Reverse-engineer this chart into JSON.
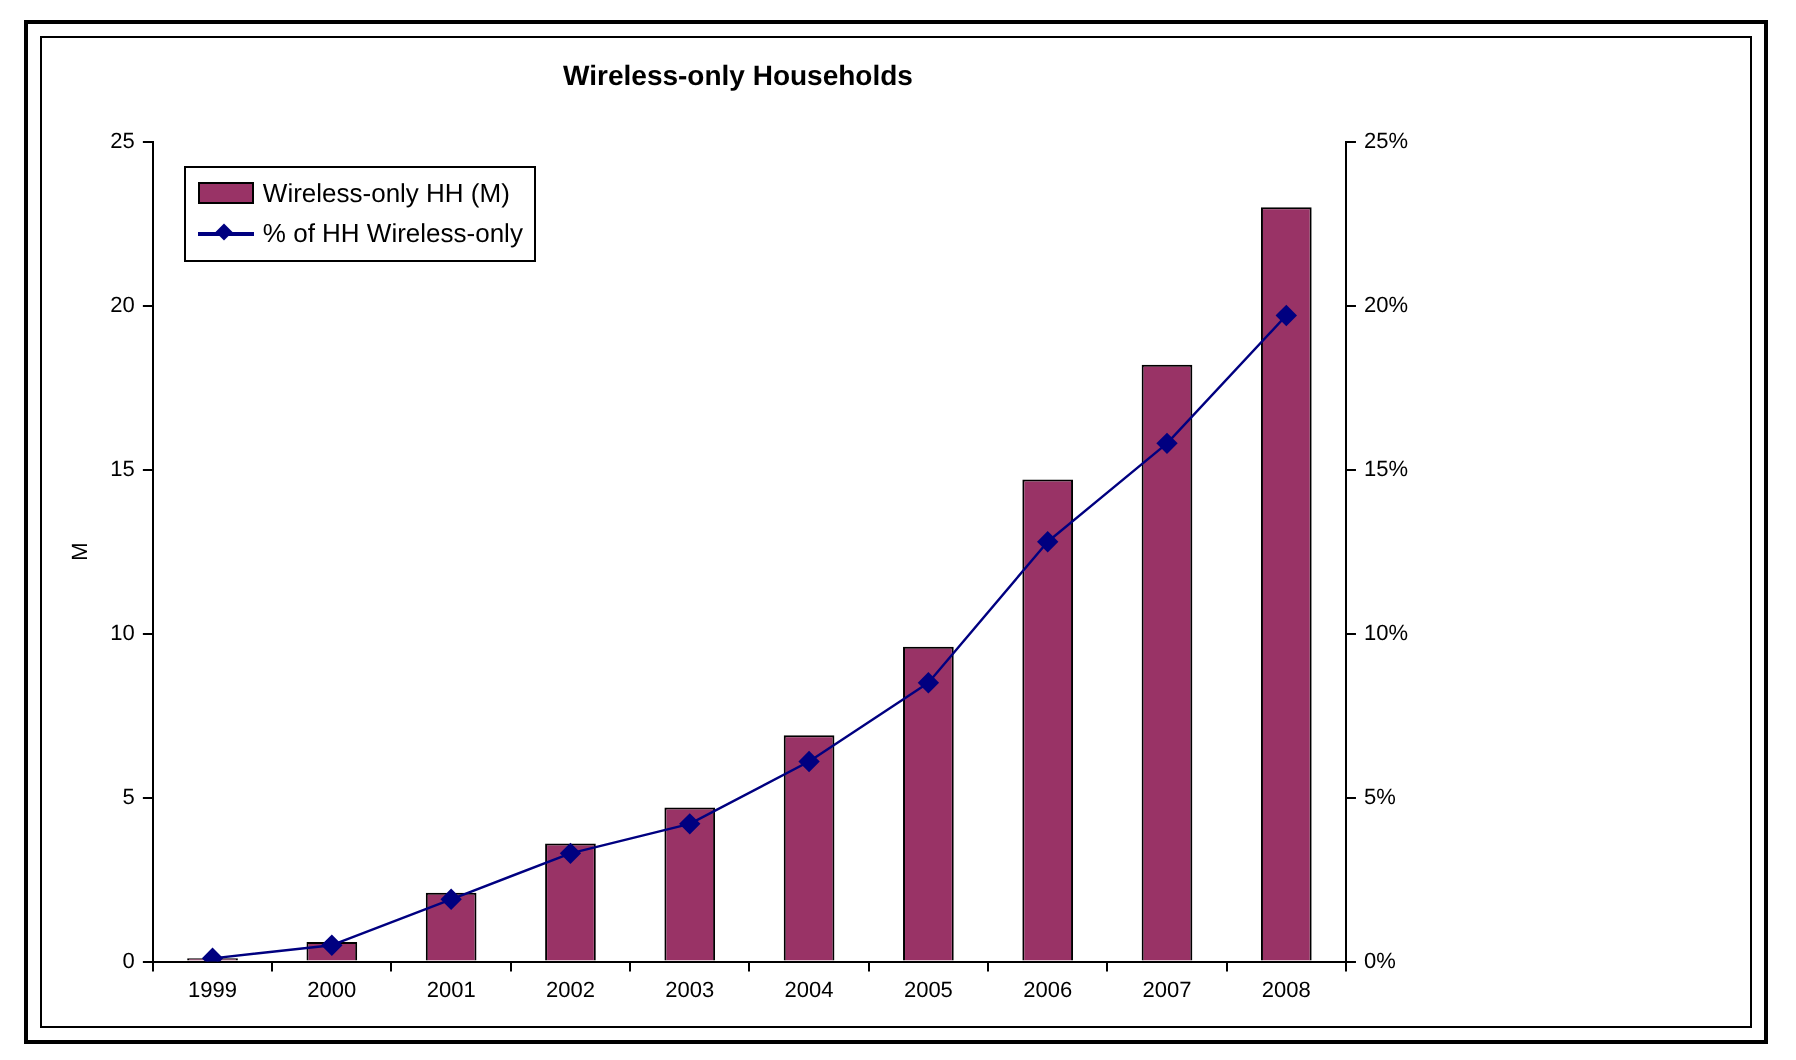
{
  "chart_data": {
    "type": "bar",
    "title": "Wireless-only Households",
    "ylabel": "M",
    "categories": [
      "1999",
      "2000",
      "2001",
      "2002",
      "2003",
      "2004",
      "2005",
      "2006",
      "2007",
      "2008"
    ],
    "series": [
      {
        "name": "Wireless-only HH (M)",
        "color": "#993366",
        "values": [
          0.1,
          0.6,
          2.1,
          3.6,
          4.7,
          6.9,
          9.6,
          14.7,
          18.2,
          23.0
        ]
      },
      {
        "name": "% of HH Wireless-only",
        "type": "line",
        "axis": "y2",
        "color": "#000080",
        "marker": "diamond",
        "values": [
          0.1,
          0.5,
          1.9,
          3.3,
          4.2,
          6.1,
          8.5,
          12.8,
          15.8,
          19.7
        ]
      }
    ],
    "ylim": [
      0,
      25
    ],
    "yticks": [
      0,
      5,
      10,
      15,
      20,
      25
    ],
    "y2lim": [
      0,
      25
    ],
    "y2ticks": [
      {
        "value": 0,
        "label": "0%"
      },
      {
        "value": 5,
        "label": "5%"
      },
      {
        "value": 10,
        "label": "10%"
      },
      {
        "value": 15,
        "label": "15%"
      },
      {
        "value": 20,
        "label": "20%"
      },
      {
        "value": 25,
        "label": "25%"
      }
    ],
    "grid": false,
    "legend": "top left"
  }
}
